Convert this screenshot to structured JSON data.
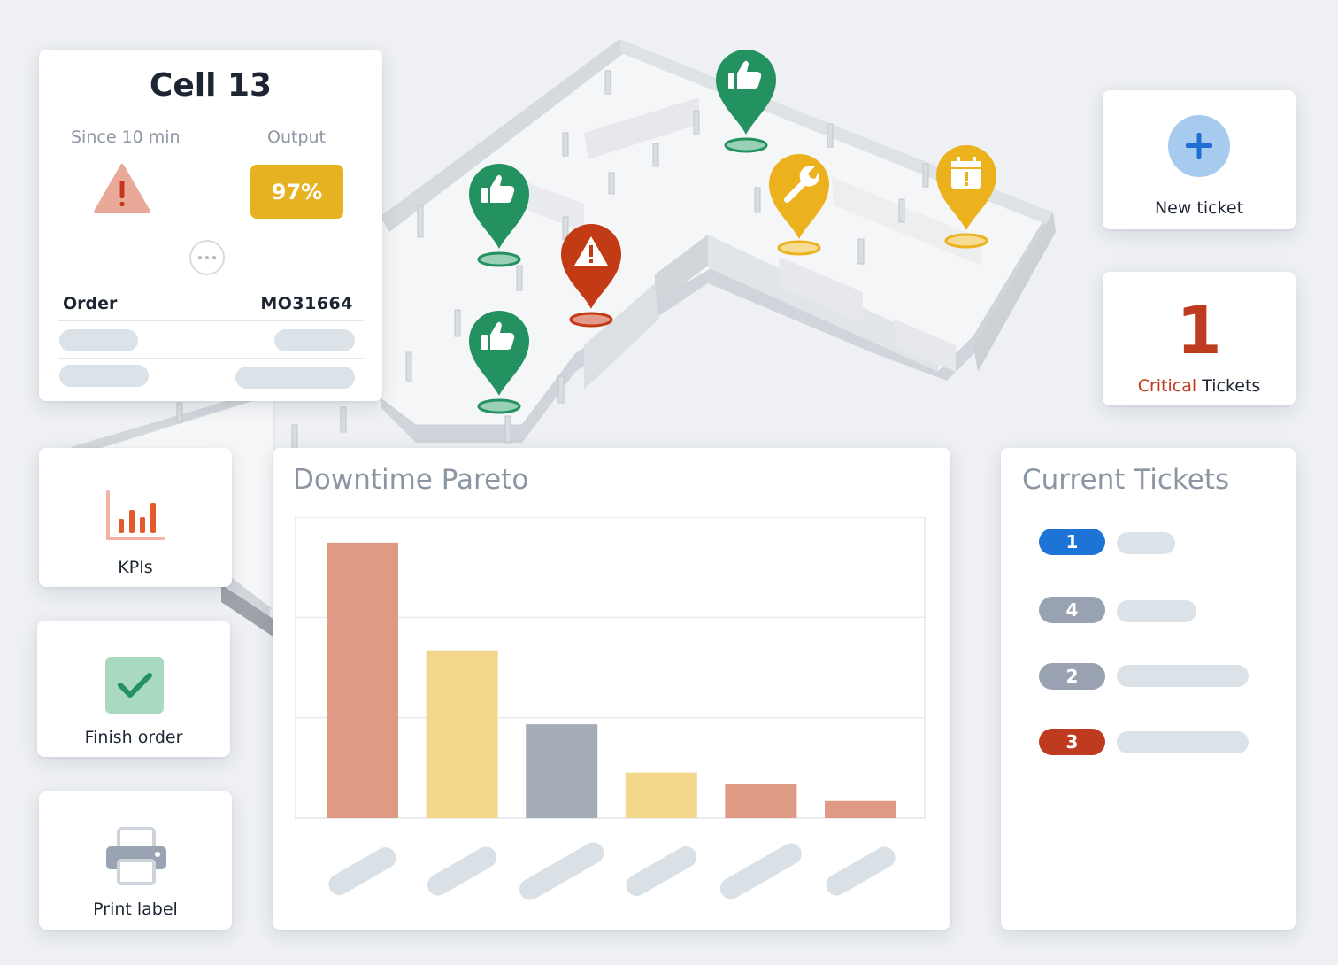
{
  "cell": {
    "title": "Cell 13",
    "since_label": "Since 10 min",
    "output_label": "Output",
    "output_value": "97%",
    "more_icon": "ellipsis-icon",
    "status_icon": "warning-triangle-icon",
    "order_label": "Order",
    "order_value": "MO31664"
  },
  "tiles": {
    "new_ticket": "New ticket",
    "kpis": "KPIs",
    "finish_order": "Finish order",
    "print_label": "Print label"
  },
  "critical": {
    "count": "1",
    "word_critical": "Critical",
    "word_tickets": " Tickets"
  },
  "tickets": {
    "title": "Current Tickets",
    "items": [
      {
        "number": "1",
        "color": "#1d73d6"
      },
      {
        "number": "4",
        "color": "#98a2b0"
      },
      {
        "number": "2",
        "color": "#98a2b0"
      },
      {
        "number": "3",
        "color": "#bf3b1f"
      }
    ]
  },
  "map_markers": [
    {
      "icon": "thumbs-up-icon",
      "status": "ok",
      "color": "#249160"
    },
    {
      "icon": "thumbs-up-icon",
      "status": "ok",
      "color": "#249160"
    },
    {
      "icon": "warning-icon",
      "status": "critical",
      "color": "#c23b15"
    },
    {
      "icon": "thumbs-up-icon",
      "status": "ok",
      "color": "#249160"
    },
    {
      "icon": "wrench-icon",
      "status": "maintenance",
      "color": "#ebb21d"
    },
    {
      "icon": "calendar-alert-icon",
      "status": "scheduled",
      "color": "#ebb21d"
    }
  ],
  "colors": {
    "accent_red": "#bf3b1f",
    "accent_yellow": "#e6b222",
    "accent_green": "#249160",
    "accent_blue": "#1d73d6"
  },
  "chart_data": {
    "type": "bar",
    "title": "Downtime Pareto",
    "categories": [
      "",
      "",
      "",
      "",
      "",
      ""
    ],
    "values": [
      97,
      59,
      33,
      16,
      12,
      6
    ],
    "bar_colors": [
      "#de9a85",
      "#f4d68d",
      "#a3abb7",
      "#f4d68d",
      "#de9a85",
      "#de9a85"
    ],
    "ylim": [
      0,
      106
    ],
    "grid": true,
    "xlabel": "",
    "ylabel": ""
  }
}
